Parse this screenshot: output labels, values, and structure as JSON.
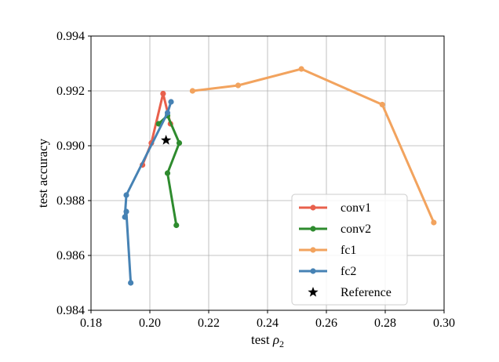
{
  "chart_data": {
    "type": "line",
    "title": "",
    "xlabel": "test ",
    "xlabel_symbol": "ρ",
    "xlabel_subscript": "2",
    "ylabel": "test accuracy",
    "xlim": [
      0.18,
      0.3
    ],
    "ylim": [
      0.984,
      0.994
    ],
    "xticks": [
      0.18,
      0.2,
      0.22,
      0.24,
      0.26,
      0.28,
      0.3
    ],
    "xtick_labels": [
      "0.18",
      "0.20",
      "0.22",
      "0.24",
      "0.26",
      "0.28",
      "0.30"
    ],
    "yticks": [
      0.984,
      0.986,
      0.988,
      0.99,
      0.992,
      0.994
    ],
    "ytick_labels": [
      "0.984",
      "0.986",
      "0.988",
      "0.990",
      "0.992",
      "0.994"
    ],
    "grid": true,
    "legend_position": "lower-right",
    "series": [
      {
        "name": "conv1",
        "color": "#e8604c",
        "marker": "circle",
        "x": [
          0.1975,
          0.2005,
          0.2045,
          0.207
        ],
        "y": [
          0.9893,
          0.9901,
          0.9919,
          0.9908
        ]
      },
      {
        "name": "conv2",
        "color": "#2e8b2e",
        "marker": "circle",
        "x": [
          0.203,
          0.206,
          0.21,
          0.206,
          0.209
        ],
        "y": [
          0.9908,
          0.9911,
          0.9901,
          0.989,
          0.9871
        ]
      },
      {
        "name": "fc1",
        "color": "#f2a35e",
        "marker": "circle",
        "x": [
          0.2145,
          0.23,
          0.2515,
          0.279,
          0.2965
        ],
        "y": [
          0.992,
          0.9922,
          0.9928,
          0.9915,
          0.9872
        ]
      },
      {
        "name": "fc2",
        "color": "#4682b4",
        "marker": "circle",
        "x": [
          0.1935,
          0.192,
          0.1915,
          0.192,
          0.206,
          0.2072
        ],
        "y": [
          0.985,
          0.9876,
          0.9874,
          0.9882,
          0.9912,
          0.9916
        ]
      },
      {
        "name": "Reference",
        "color": "#000000",
        "marker": "star",
        "x": [
          0.2055
        ],
        "y": [
          0.9902
        ]
      }
    ]
  }
}
